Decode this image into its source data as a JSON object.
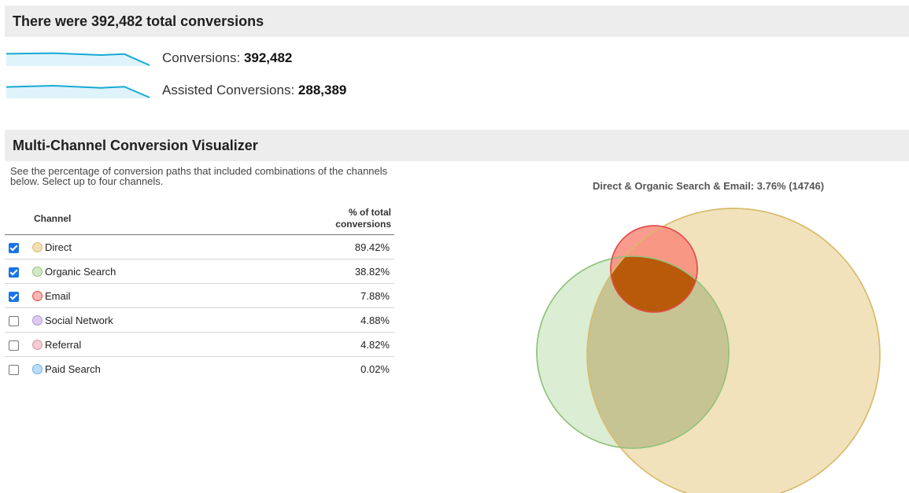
{
  "summary": {
    "header": "There were 392,482 total conversions",
    "metrics": [
      {
        "label": "Conversions: ",
        "value": "392,482",
        "sparkline": [
          0.78,
          0.82,
          0.7,
          0.76,
          0.05
        ]
      },
      {
        "label": "Assisted Conversions: ",
        "value": "288,389",
        "sparkline": [
          0.72,
          0.8,
          0.66,
          0.74,
          0.05
        ]
      }
    ],
    "sparkline_color": "#17a9d5",
    "sparkline_fill": "#dff3fa"
  },
  "visualizer": {
    "header": "Multi-Channel Conversion Visualizer",
    "description": "See the percentage of conversion paths that included combinations of the channels below. Select up to four channels.",
    "table": {
      "col_channel": "Channel",
      "col_pct": "% of total conversions",
      "rows": [
        {
          "name": "Direct",
          "pct": "89.42%",
          "checked": true,
          "color": "#f0dfb5",
          "border": "#d9b96a"
        },
        {
          "name": "Organic Search",
          "pct": "38.82%",
          "checked": true,
          "color": "#d2e8c8",
          "border": "#8fc27a"
        },
        {
          "name": "Email",
          "pct": "7.88%",
          "checked": true,
          "color": "#f9b6b6",
          "border": "#e24a4a"
        },
        {
          "name": "Social Network",
          "pct": "4.88%",
          "checked": false,
          "color": "#dccaf0",
          "border": "#b293d6"
        },
        {
          "name": "Referral",
          "pct": "4.82%",
          "checked": false,
          "color": "#f4ccd6",
          "border": "#d895a6"
        },
        {
          "name": "Paid Search",
          "pct": "0.02%",
          "checked": false,
          "color": "#b9dcf7",
          "border": "#6aaee4"
        }
      ]
    },
    "venn": {
      "title": "Direct & Organic Search & Email: 3.76% (14746)",
      "intersection_color": "#b85a0a"
    }
  }
}
